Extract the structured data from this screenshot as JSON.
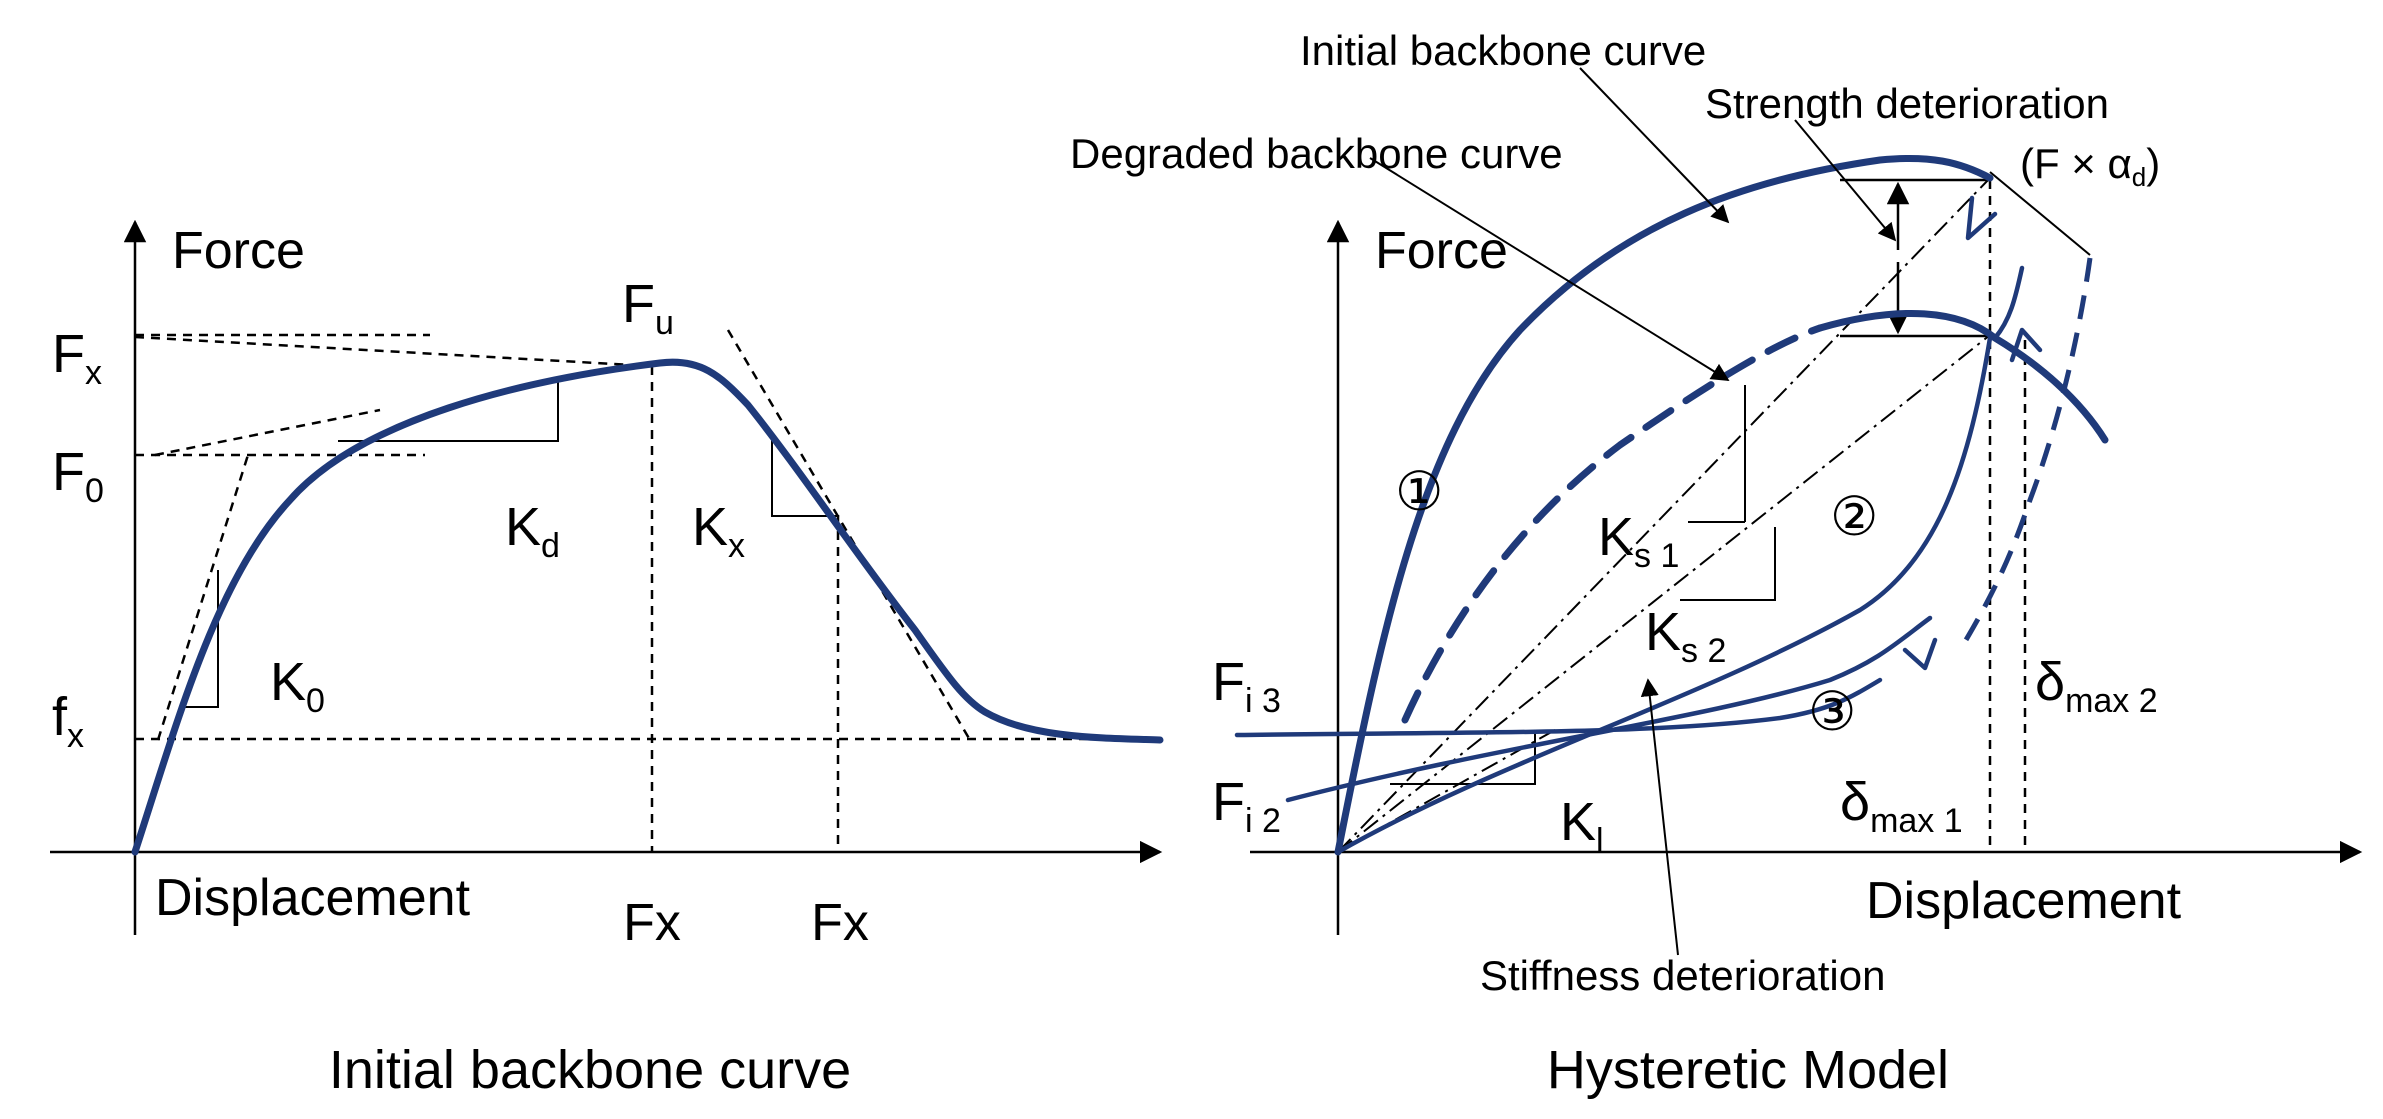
{
  "colors": {
    "curve": "#1f3a7a",
    "lines": "#000000",
    "background": "#ffffff"
  },
  "left": {
    "y_axis_label": "Force",
    "x_axis_label": "Displacement",
    "caption": "Initial backbone curve",
    "Fx_main": "F",
    "Fx_sub": "x",
    "Fu_main": "F",
    "Fu_sub": "u",
    "F0_main": "F",
    "F0_sub": "0",
    "fx_main": "f",
    "fx_sub": "x",
    "Kd_main": "K",
    "Kd_sub": "d",
    "Kx_main": "K",
    "Kx_sub": "x",
    "K0_main": "K",
    "K0_sub": "0",
    "tick1": "Fx",
    "tick2": "Fx"
  },
  "right": {
    "y_axis_label": "Force",
    "x_axis_label": "Displacement",
    "caption": "Hysteretic Model",
    "initial_backbone": "Initial backbone curve",
    "degraded_backbone": "Degraded backbone curve",
    "strength_det": "Strength deterioration",
    "strength_formula": "(F × α",
    "strength_formula_sub": "d",
    "strength_formula_close": ")",
    "stiffness_det": "Stiffness deterioration",
    "circle1": "①",
    "circle2": "②",
    "circle3": "③",
    "Ks1_main": "K",
    "Ks1_sub": "s 1",
    "Ks2_main": "K",
    "Ks2_sub": "s 2",
    "Kl_main": "K",
    "Kl_sub": "l",
    "Fi3_main": "F",
    "Fi3_sub": "i 3",
    "Fi2_main": "F",
    "Fi2_sub": "i 2",
    "dmax1_main": "δ",
    "dmax1_sub": "max 1",
    "dmax2_main": "δ",
    "dmax2_sub": "max 2"
  }
}
